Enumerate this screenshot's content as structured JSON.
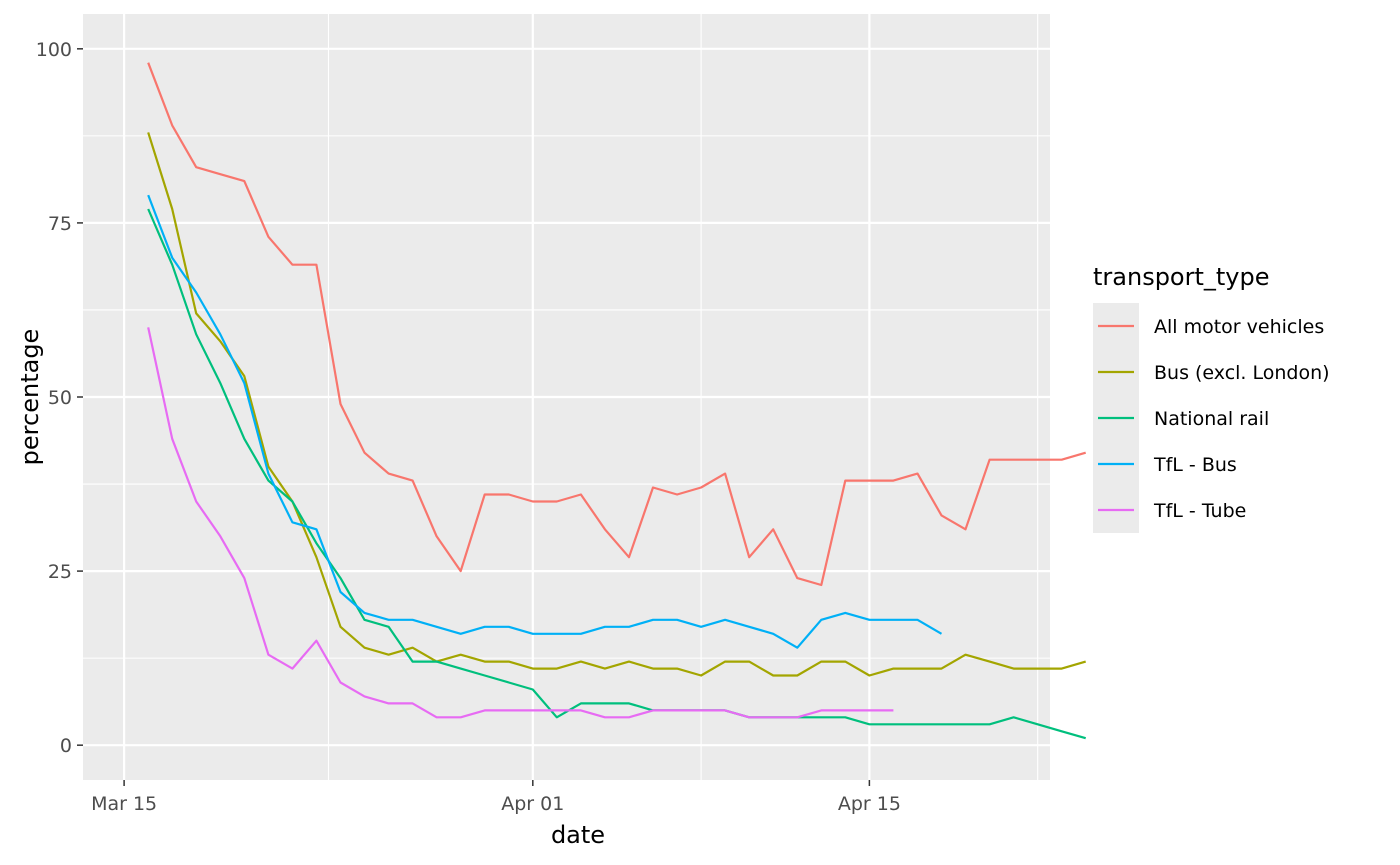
{
  "chart_data": {
    "type": "line",
    "xlabel": "date",
    "ylabel": "percentage",
    "xlim": [
      "2020-03-15",
      "2020-04-22"
    ],
    "ylim": [
      0,
      100
    ],
    "x_ticks": [
      {
        "date": "2020-03-15",
        "label": "Mar 15"
      },
      {
        "date": "2020-04-01",
        "label": "Apr 01"
      },
      {
        "date": "2020-04-15",
        "label": "Apr 15"
      }
    ],
    "y_ticks": [
      0,
      25,
      50,
      75,
      100
    ],
    "grid": true,
    "legend": {
      "title": "transport_type",
      "position": "right"
    },
    "series": [
      {
        "name": "All motor vehicles",
        "color": "#F8766D",
        "start": "2020-03-16",
        "values": [
          98,
          89,
          83,
          82,
          81,
          73,
          69,
          69,
          49,
          42,
          39,
          38,
          30,
          25,
          36,
          36,
          35,
          35,
          36,
          31,
          27,
          37,
          36,
          37,
          39,
          27,
          31,
          24,
          23,
          38,
          38,
          38,
          39,
          33,
          31,
          41,
          41,
          41,
          41,
          42
        ]
      },
      {
        "name": "Bus (excl. London)",
        "color": "#A3A500",
        "start": "2020-03-16",
        "values": [
          88,
          77,
          62,
          58,
          53,
          40,
          35,
          27,
          17,
          14,
          13,
          14,
          12,
          13,
          12,
          12,
          11,
          11,
          12,
          11,
          12,
          11,
          11,
          10,
          12,
          12,
          10,
          10,
          12,
          12,
          10,
          11,
          11,
          11,
          13,
          12,
          11,
          11,
          11,
          12
        ]
      },
      {
        "name": "National rail",
        "color": "#00BF7D",
        "start": "2020-03-16",
        "values": [
          77,
          69,
          59,
          52,
          44,
          38,
          35,
          29,
          24,
          18,
          17,
          12,
          12,
          11,
          10,
          9,
          8,
          4,
          6,
          6,
          6,
          5,
          5,
          5,
          5,
          4,
          4,
          4,
          4,
          4,
          3,
          3,
          3,
          3,
          3,
          3,
          4,
          3,
          2,
          1
        ]
      },
      {
        "name": "TfL - Bus",
        "color": "#00B0F6",
        "start": "2020-03-16",
        "values": [
          79,
          70,
          65,
          59,
          52,
          39,
          32,
          31,
          22,
          19,
          18,
          18,
          17,
          16,
          17,
          17,
          16,
          16,
          16,
          17,
          17,
          18,
          18,
          17,
          18,
          17,
          16,
          14,
          18,
          19,
          18,
          18,
          18,
          16
        ]
      },
      {
        "name": "TfL - Tube",
        "color": "#E76BF3",
        "start": "2020-03-16",
        "values": [
          60,
          44,
          35,
          30,
          24,
          13,
          11,
          15,
          9,
          7,
          6,
          6,
          4,
          4,
          5,
          5,
          5,
          5,
          5,
          4,
          4,
          5,
          5,
          5,
          5,
          4,
          4,
          4,
          5,
          5,
          5,
          5
        ]
      }
    ]
  }
}
